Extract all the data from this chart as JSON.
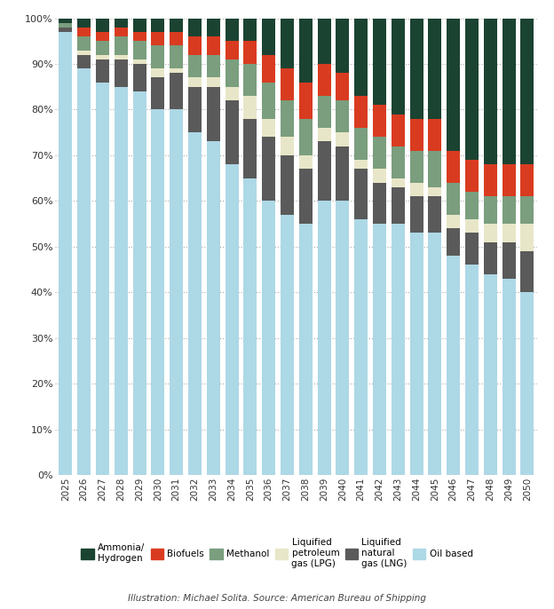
{
  "years": [
    2025,
    2026,
    2027,
    2028,
    2029,
    2030,
    2031,
    2032,
    2033,
    2034,
    2035,
    2036,
    2037,
    2038,
    2039,
    2040,
    2041,
    2042,
    2043,
    2044,
    2045,
    2046,
    2047,
    2048,
    2049,
    2050
  ],
  "series": {
    "Oil based": [
      97,
      89,
      86,
      85,
      84,
      80,
      80,
      75,
      73,
      68,
      65,
      60,
      57,
      55,
      60,
      60,
      56,
      55,
      55,
      53,
      53,
      48,
      46,
      44,
      43,
      40
    ],
    "Liquified natural gas (LNG)": [
      1,
      3,
      5,
      6,
      6,
      7,
      8,
      10,
      12,
      14,
      13,
      14,
      13,
      12,
      13,
      12,
      11,
      9,
      8,
      8,
      8,
      6,
      7,
      7,
      8,
      9
    ],
    "Liquified petroleum gas (LPG)": [
      0,
      1,
      1,
      1,
      1,
      2,
      1,
      2,
      2,
      3,
      5,
      4,
      4,
      3,
      3,
      3,
      2,
      3,
      2,
      3,
      2,
      3,
      3,
      4,
      4,
      6
    ],
    "Methanol": [
      1,
      3,
      3,
      4,
      4,
      5,
      5,
      5,
      5,
      6,
      7,
      8,
      8,
      8,
      7,
      7,
      7,
      7,
      7,
      7,
      8,
      7,
      6,
      6,
      6,
      6
    ],
    "Biofuels": [
      0,
      2,
      2,
      2,
      2,
      3,
      3,
      4,
      4,
      4,
      5,
      6,
      7,
      8,
      7,
      6,
      7,
      7,
      7,
      7,
      7,
      7,
      7,
      7,
      7,
      7
    ],
    "Ammonia/Hydrogen": [
      1,
      2,
      3,
      2,
      3,
      3,
      3,
      4,
      4,
      5,
      5,
      8,
      11,
      14,
      10,
      12,
      17,
      19,
      21,
      22,
      22,
      29,
      31,
      32,
      32,
      32
    ]
  },
  "colors": {
    "Oil based": "#add8e6",
    "Liquified natural gas (LNG)": "#5a5a5a",
    "Liquified petroleum gas (LPG)": "#e8e6c8",
    "Methanol": "#7a9e7e",
    "Biofuels": "#d93b20",
    "Ammonia/Hydrogen": "#1b4332"
  },
  "legend_order": [
    "Ammonia/Hydrogen",
    "Biofuels",
    "Methanol",
    "Liquified petroleum gas (LPG)",
    "Liquified natural gas (LNG)",
    "Oil based"
  ],
  "legend_labels": {
    "Ammonia/Hydrogen": "Ammonia/\nHydrogen",
    "Biofuels": "Biofuels",
    "Methanol": "Methanol",
    "Liquified petroleum gas (LPG)": "Liquified\npetroleum\ngas (LPG)",
    "Liquified natural gas (LNG)": "Liquified\nnatural\ngas (LNG)",
    "Oil based": "Oil based"
  },
  "footnote": "Illustration: Michael Solita. Source: American Bureau of Shipping",
  "background_color": "#ffffff"
}
